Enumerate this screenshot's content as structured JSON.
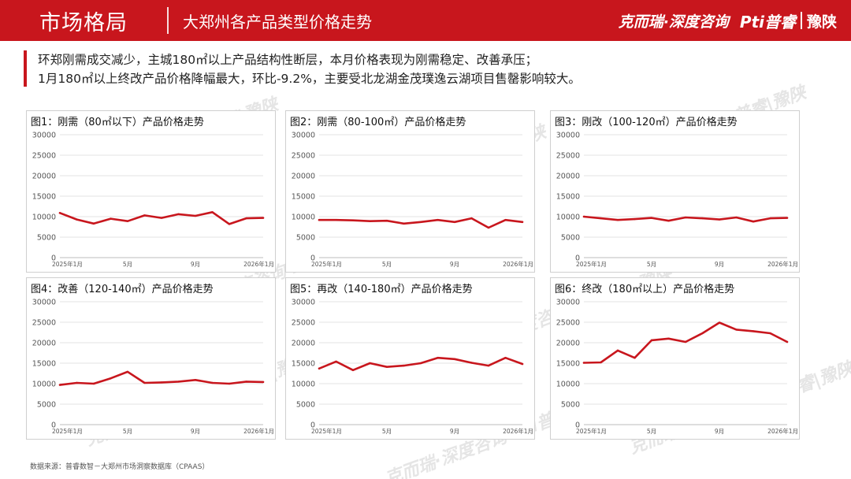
{
  "header": {
    "title": "市场格局",
    "subtitle": "大郑州各产品类型价格走势",
    "brand_left": "克而瑞·深度咨询",
    "brand_mid": "Pti普睿",
    "brand_right": "豫陕"
  },
  "summary": {
    "line1": "环郑刚需成交减少，主城180㎡以上产品结构性断层，本月价格表现为刚需稳定、改善承压；",
    "line2": "1月180㎡以上终改产品价格降幅最大，环比-9.2%，主要受北龙湖金茂璞逸云湖项目售罄影响较大。"
  },
  "watermark": "克而瑞·深度咨询 Pti普睿|豫陕",
  "footer": {
    "source": "数据来源：普睿数智－大郑州市场洞察数据库（CPAAS）"
  },
  "colors": {
    "brand": "#c8161d",
    "line": "#c8161d"
  },
  "chart_data": [
    {
      "type": "line",
      "title": "图1：刚需（80㎡以下）产品价格走势",
      "x_ticks": [
        "2025年1月",
        "5月",
        "9月",
        "2026年1月"
      ],
      "x_tick_index": [
        0,
        4,
        8,
        12
      ],
      "y_ticks": [
        "0",
        "5000",
        "10000",
        "15000",
        "20000",
        "25000",
        "30000"
      ],
      "ylim": [
        0,
        30000
      ],
      "values": [
        10900,
        9300,
        8300,
        9500,
        8900,
        10300,
        9700,
        10600,
        10200,
        11100,
        8200,
        9600,
        9700
      ]
    },
    {
      "type": "line",
      "title": "图2：刚需（80-100㎡）产品价格走势",
      "x_ticks": [
        "2025年1月",
        "5月",
        "9月",
        "2026年1月"
      ],
      "x_tick_index": [
        0,
        4,
        8,
        12
      ],
      "y_ticks": [
        "0",
        "5000",
        "10000",
        "15000",
        "20000",
        "25000",
        "30000"
      ],
      "ylim": [
        0,
        30000
      ],
      "values": [
        9200,
        9200,
        9100,
        8900,
        9000,
        8300,
        8700,
        9200,
        8700,
        9600,
        7300,
        9200,
        8700
      ]
    },
    {
      "type": "line",
      "title": "图3：刚改（100-120㎡）产品价格走势",
      "x_ticks": [
        "2025年1月",
        "5月",
        "9月",
        "2026年1月"
      ],
      "x_tick_index": [
        0,
        4,
        8,
        12
      ],
      "y_ticks": [
        "0",
        "5000",
        "10000",
        "15000",
        "20000",
        "25000",
        "30000"
      ],
      "ylim": [
        0,
        30000
      ],
      "values": [
        10000,
        9600,
        9200,
        9400,
        9700,
        9000,
        9800,
        9600,
        9300,
        9800,
        8800,
        9600,
        9700
      ]
    },
    {
      "type": "line",
      "title": "图4：改善（120-140㎡）产品价格走势",
      "x_ticks": [
        "2025年1月",
        "5月",
        "9月",
        "2026年1月"
      ],
      "x_tick_index": [
        0,
        4,
        8,
        12
      ],
      "y_ticks": [
        "0",
        "5000",
        "10000",
        "15000",
        "20000",
        "25000",
        "30000"
      ],
      "ylim": [
        0,
        30000
      ],
      "values": [
        9700,
        10200,
        10000,
        11300,
        12900,
        10200,
        10300,
        10500,
        10900,
        10200,
        10000,
        10500,
        10400
      ]
    },
    {
      "type": "line",
      "title": "图5：再改（140-180㎡）产品价格走势",
      "x_ticks": [
        "2025年1月",
        "5月",
        "9月",
        "2026年1月"
      ],
      "x_tick_index": [
        0,
        4,
        8,
        12
      ],
      "y_ticks": [
        "0",
        "5000",
        "10000",
        "15000",
        "20000",
        "25000",
        "30000"
      ],
      "ylim": [
        0,
        30000
      ],
      "values": [
        13700,
        15400,
        13300,
        15000,
        14100,
        14400,
        15000,
        16300,
        16000,
        15100,
        14400,
        16300,
        14800
      ]
    },
    {
      "type": "line",
      "title": "图6：终改（180㎡以上）产品价格走势",
      "x_ticks": [
        "2025年1月",
        "5月",
        "9月",
        "2026年1月"
      ],
      "x_tick_index": [
        0,
        4,
        8,
        12
      ],
      "y_ticks": [
        "0",
        "5000",
        "10000",
        "15000",
        "20000",
        "25000",
        "30000"
      ],
      "ylim": [
        0,
        30000
      ],
      "values": [
        15100,
        15200,
        18100,
        16300,
        20600,
        21000,
        20200,
        22300,
        24900,
        23200,
        22800,
        22300,
        20200
      ]
    }
  ]
}
